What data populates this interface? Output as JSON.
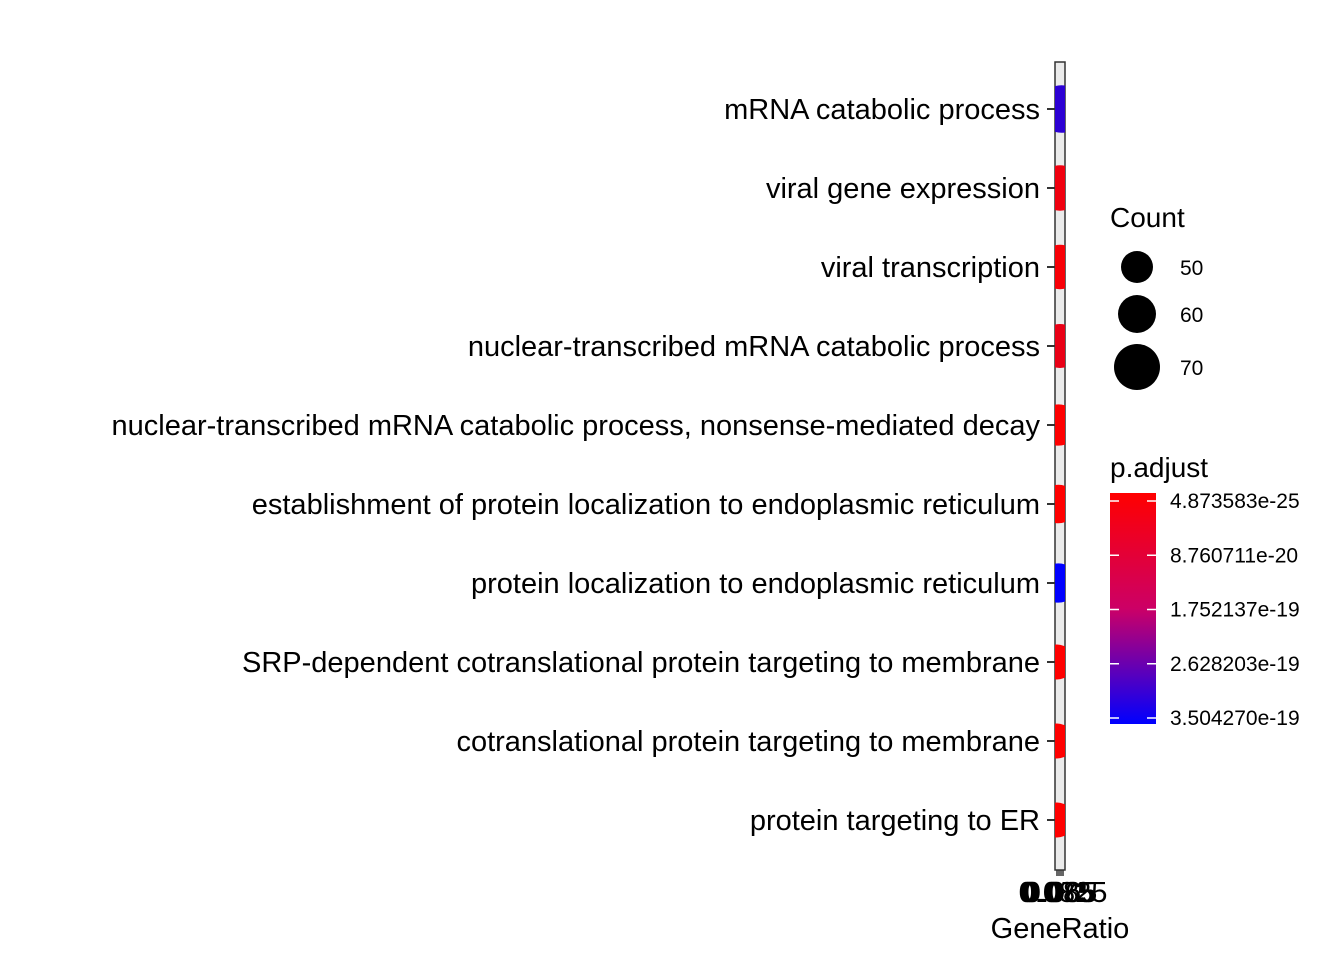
{
  "chart_data": {
    "type": "scatter",
    "subtype": "dot-plot",
    "xlabel": "GeneRatio",
    "ylabel": "",
    "x_tick_labels": [
      "0.075",
      "0.085",
      "0.065",
      "0.0825"
    ],
    "xlim": [
      0.07,
      0.09
    ],
    "grid": false,
    "legend_placement": "right",
    "categories": [
      "mRNA catabolic process",
      "viral gene expression",
      "viral transcription",
      "nuclear-transcribed mRNA catabolic process",
      "nuclear-transcribed mRNA catabolic process, nonsense-mediated decay",
      "establishment of protein localization to endoplasmic reticulum",
      "protein localization to endoplasmic reticulum",
      "SRP-dependent cotranslational protein targeting to membrane",
      "cotranslational protein targeting to membrane",
      "protein targeting to ER"
    ],
    "points": [
      {
        "term": "mRNA catabolic process",
        "gene_ratio": 0.085,
        "count": 74,
        "p_adjust": 2.9e-19
      },
      {
        "term": "viral gene expression",
        "gene_ratio": 0.08,
        "count": 69,
        "p_adjust": 2e-20
      },
      {
        "term": "viral transcription",
        "gene_ratio": 0.08,
        "count": 67,
        "p_adjust": 1e-20
      },
      {
        "term": "nuclear-transcribed mRNA catabolic process",
        "gene_ratio": 0.08,
        "count": 66,
        "p_adjust": 3e-20
      },
      {
        "term": "nuclear-transcribed mRNA catabolic process, nonsense-mediated decay",
        "gene_ratio": 0.075,
        "count": 61,
        "p_adjust": 1e-21
      },
      {
        "term": "establishment of protein localization to endoplasmic reticulum",
        "gene_ratio": 0.075,
        "count": 57,
        "p_adjust": 1e-23
      },
      {
        "term": "protein localization to endoplasmic reticulum",
        "gene_ratio": 0.075,
        "count": 58,
        "p_adjust": 3.50427e-19
      },
      {
        "term": "SRP-dependent cotranslational protein targeting to membrane",
        "gene_ratio": 0.07,
        "count": 53,
        "p_adjust": 4.873583e-25
      },
      {
        "term": "cotranslational protein targeting to membrane",
        "gene_ratio": 0.07,
        "count": 53,
        "p_adjust": 1e-24
      },
      {
        "term": "protein targeting to ER",
        "gene_ratio": 0.07,
        "count": 53,
        "p_adjust": 1e-24
      }
    ],
    "size_legend": {
      "title": "Count",
      "entries": [
        {
          "label": "50",
          "value": 50
        },
        {
          "label": "60",
          "value": 60
        },
        {
          "label": "70",
          "value": 70
        }
      ]
    },
    "color_legend": {
      "title": "p.adjust",
      "labels": [
        "4.873583e-25",
        "8.760711e-20",
        "1.752137e-19",
        "2.628203e-19",
        "3.504270e-19"
      ],
      "min": 4.873583e-25,
      "max": 3.50427e-19,
      "low_color": "#FF0000",
      "high_color": "#0000FF"
    },
    "panel_color": "#EBEBEB",
    "point_colors": [
      "#FF0000",
      "#0000FF"
    ]
  }
}
